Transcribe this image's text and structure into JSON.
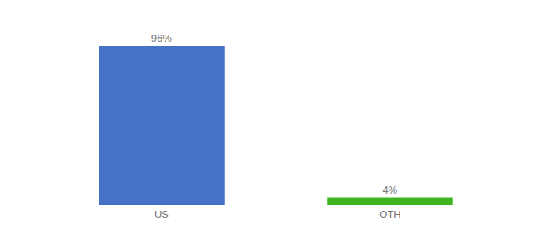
{
  "chart_data": {
    "type": "bar",
    "categories": [
      "US",
      "OTH"
    ],
    "values": [
      96,
      4
    ],
    "value_labels": [
      "96%",
      "4%"
    ],
    "colors": [
      "#4472c4",
      "#3cb521"
    ],
    "ylim": [
      0,
      105
    ],
    "grid": false,
    "data_labels": true,
    "tick_labels": "x"
  }
}
